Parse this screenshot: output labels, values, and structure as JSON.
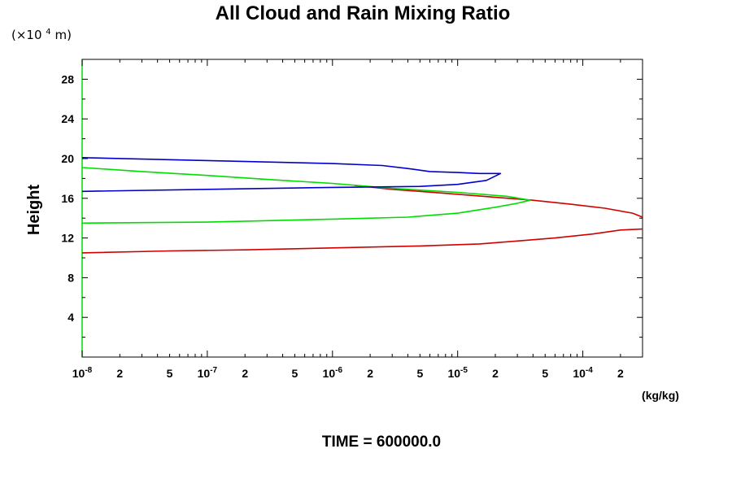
{
  "chart_data": {
    "type": "line",
    "title": "All Cloud and Rain Mixing Ratio",
    "ylabel": "Height",
    "yunit": {
      "prefix": "(×10",
      "exp": "4",
      "suffix": " m)"
    },
    "xunit": "(kg/kg)",
    "xscale": "log",
    "xlim": [
      1e-08,
      0.0003
    ],
    "ylim": [
      0,
      30
    ],
    "yticks": [
      {
        "value": 4,
        "label": "4"
      },
      {
        "value": 8,
        "label": "8"
      },
      {
        "value": 12,
        "label": "12"
      },
      {
        "value": 16,
        "label": "16"
      },
      {
        "value": 20,
        "label": "20"
      },
      {
        "value": 24,
        "label": "24"
      },
      {
        "value": 28,
        "label": "28"
      }
    ],
    "xticks": [
      {
        "value": 1e-08,
        "base": "10",
        "exp": "-8"
      },
      {
        "value": 2e-08,
        "label": "2"
      },
      {
        "value": 5e-08,
        "label": "5"
      },
      {
        "value": 1e-07,
        "base": "10",
        "exp": "-7"
      },
      {
        "value": 2e-07,
        "label": "2"
      },
      {
        "value": 5e-07,
        "label": "5"
      },
      {
        "value": 1e-06,
        "base": "10",
        "exp": "-6"
      },
      {
        "value": 2e-06,
        "label": "2"
      },
      {
        "value": 5e-06,
        "label": "5"
      },
      {
        "value": 1e-05,
        "base": "10",
        "exp": "-5"
      },
      {
        "value": 2e-05,
        "label": "2"
      },
      {
        "value": 5e-05,
        "label": "5"
      },
      {
        "value": 0.0001,
        "base": "10",
        "exp": "-4"
      },
      {
        "value": 0.0002,
        "label": "2"
      }
    ],
    "series": [
      {
        "color": "#d00000",
        "points": [
          [
            1e-08,
            10.5
          ],
          [
            5e-08,
            10.7
          ],
          [
            2e-07,
            10.8
          ],
          [
            1e-06,
            11.0
          ],
          [
            5e-06,
            11.2
          ],
          [
            1.5e-05,
            11.4
          ],
          [
            3e-05,
            11.7
          ],
          [
            6e-05,
            12.0
          ],
          [
            0.00012,
            12.4
          ],
          [
            0.0002,
            12.8
          ],
          [
            0.0003,
            12.9
          ]
        ]
      },
      {
        "color": "#d00000",
        "points": [
          [
            1.5e-06,
            17.3
          ],
          [
            3e-06,
            16.9
          ],
          [
            8e-06,
            16.5
          ],
          [
            2e-05,
            16.1
          ],
          [
            4e-05,
            15.8
          ],
          [
            8e-05,
            15.4
          ],
          [
            0.00015,
            15.0
          ],
          [
            0.00025,
            14.5
          ],
          [
            0.0003,
            14.1
          ]
        ]
      },
      {
        "color": "#00dd00",
        "points": [
          [
            1e-08,
            13.5
          ],
          [
            1e-07,
            13.6
          ],
          [
            1e-06,
            13.9
          ],
          [
            4e-06,
            14.1
          ],
          [
            1e-05,
            14.5
          ],
          [
            2e-05,
            15.1
          ],
          [
            3e-05,
            15.5
          ],
          [
            3.8e-05,
            15.8
          ],
          [
            2.5e-05,
            16.2
          ],
          [
            1e-05,
            16.6
          ],
          [
            3e-06,
            17.0
          ],
          [
            1e-06,
            17.5
          ],
          [
            3e-07,
            17.9
          ],
          [
            1e-07,
            18.3
          ],
          [
            3e-08,
            18.7
          ],
          [
            1e-08,
            19.1
          ]
        ]
      },
      {
        "color": "#0000cc",
        "points": [
          [
            1e-08,
            16.7
          ],
          [
            1e-07,
            16.9
          ],
          [
            1e-06,
            17.1
          ],
          [
            5e-06,
            17.2
          ],
          [
            1e-05,
            17.4
          ],
          [
            1.7e-05,
            17.8
          ],
          [
            2.2e-05,
            18.5
          ],
          [
            1.5e-05,
            18.5
          ],
          [
            1e-05,
            18.6
          ],
          [
            6e-06,
            18.7
          ],
          [
            4e-06,
            19.0
          ],
          [
            2.5e-06,
            19.3
          ],
          [
            1e-06,
            19.5
          ],
          [
            1e-07,
            19.8
          ],
          [
            1e-08,
            20.1
          ]
        ]
      }
    ],
    "left_axis_color": "#00dd00"
  },
  "footer": {
    "time_label": "TIME = 600000.0"
  }
}
